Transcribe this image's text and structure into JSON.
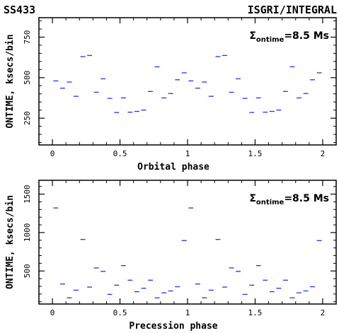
{
  "header": {
    "left": "SS433",
    "right": "ISGRI/INTEGRAL"
  },
  "chart_data": [
    {
      "type": "scatter",
      "annotation": {
        "symbol": "Σ",
        "subscript": "ontime",
        "value": "=8.5 Ms"
      },
      "xlabel": "Orbital phase",
      "ylabel": "ONTIME, ksecs/bin",
      "xlim": [
        -0.1,
        2.1
      ],
      "ylim": [
        85,
        870
      ],
      "xticks": [
        "0",
        "0.5",
        "1",
        "1.5",
        "2"
      ],
      "xtick_values": [
        0,
        0.5,
        1,
        1.5,
        2
      ],
      "yticks": [
        "250",
        "500",
        "750"
      ],
      "ytick_values": [
        250,
        500,
        750
      ],
      "marker_color": "#2233ee",
      "points": [
        {
          "x": 0.025,
          "y": 480
        },
        {
          "x": 0.075,
          "y": 435
        },
        {
          "x": 0.125,
          "y": 473
        },
        {
          "x": 0.175,
          "y": 385
        },
        {
          "x": 0.225,
          "y": 630
        },
        {
          "x": 0.275,
          "y": 637
        },
        {
          "x": 0.325,
          "y": 410
        },
        {
          "x": 0.375,
          "y": 493
        },
        {
          "x": 0.425,
          "y": 372
        },
        {
          "x": 0.475,
          "y": 285
        },
        {
          "x": 0.525,
          "y": 375
        },
        {
          "x": 0.575,
          "y": 287
        },
        {
          "x": 0.625,
          "y": 292
        },
        {
          "x": 0.675,
          "y": 300
        },
        {
          "x": 0.725,
          "y": 415
        },
        {
          "x": 0.775,
          "y": 567
        },
        {
          "x": 0.825,
          "y": 375
        },
        {
          "x": 0.875,
          "y": 402
        },
        {
          "x": 0.925,
          "y": 487
        },
        {
          "x": 0.975,
          "y": 530
        },
        {
          "x": 1.025,
          "y": 480
        },
        {
          "x": 1.075,
          "y": 435
        },
        {
          "x": 1.125,
          "y": 473
        },
        {
          "x": 1.175,
          "y": 385
        },
        {
          "x": 1.225,
          "y": 630
        },
        {
          "x": 1.275,
          "y": 637
        },
        {
          "x": 1.325,
          "y": 410
        },
        {
          "x": 1.375,
          "y": 493
        },
        {
          "x": 1.425,
          "y": 372
        },
        {
          "x": 1.475,
          "y": 285
        },
        {
          "x": 1.525,
          "y": 375
        },
        {
          "x": 1.575,
          "y": 287
        },
        {
          "x": 1.625,
          "y": 292
        },
        {
          "x": 1.675,
          "y": 300
        },
        {
          "x": 1.725,
          "y": 415
        },
        {
          "x": 1.775,
          "y": 567
        },
        {
          "x": 1.825,
          "y": 375
        },
        {
          "x": 1.875,
          "y": 402
        },
        {
          "x": 1.925,
          "y": 487
        },
        {
          "x": 1.975,
          "y": 530
        }
      ]
    },
    {
      "type": "scatter",
      "annotation": {
        "symbol": "Σ",
        "subscript": "ontime",
        "value": "=8.5 Ms"
      },
      "xlabel": "Precession phase",
      "ylabel": "ONTIME, ksecs/bin",
      "xlim": [
        -0.1,
        2.1
      ],
      "ylim": [
        70,
        1680
      ],
      "xticks": [
        "0",
        "0.5",
        "1",
        "1.5",
        "2"
      ],
      "xtick_values": [
        0,
        0.5,
        1,
        1.5,
        2
      ],
      "yticks": [
        "500",
        "1000",
        "1500"
      ],
      "ytick_values": [
        500,
        1000,
        1500
      ],
      "marker_color": "#2233ee",
      "points": [
        {
          "x": 0.025,
          "y": 1320
        },
        {
          "x": 0.075,
          "y": 330
        },
        {
          "x": 0.125,
          "y": 150
        },
        {
          "x": 0.175,
          "y": 250
        },
        {
          "x": 0.225,
          "y": 910
        },
        {
          "x": 0.275,
          "y": 290
        },
        {
          "x": 0.325,
          "y": 540
        },
        {
          "x": 0.375,
          "y": 495
        },
        {
          "x": 0.425,
          "y": 195
        },
        {
          "x": 0.475,
          "y": 315
        },
        {
          "x": 0.525,
          "y": 570
        },
        {
          "x": 0.575,
          "y": 380
        },
        {
          "x": 0.625,
          "y": 230
        },
        {
          "x": 0.675,
          "y": 275
        },
        {
          "x": 0.725,
          "y": 380
        },
        {
          "x": 0.775,
          "y": 150
        },
        {
          "x": 0.825,
          "y": 215
        },
        {
          "x": 0.875,
          "y": 240
        },
        {
          "x": 0.925,
          "y": 295
        },
        {
          "x": 0.975,
          "y": 895
        },
        {
          "x": 1.025,
          "y": 1320
        },
        {
          "x": 1.075,
          "y": 330
        },
        {
          "x": 1.125,
          "y": 150
        },
        {
          "x": 1.175,
          "y": 250
        },
        {
          "x": 1.225,
          "y": 910
        },
        {
          "x": 1.275,
          "y": 290
        },
        {
          "x": 1.325,
          "y": 540
        },
        {
          "x": 1.375,
          "y": 495
        },
        {
          "x": 1.425,
          "y": 195
        },
        {
          "x": 1.475,
          "y": 315
        },
        {
          "x": 1.525,
          "y": 570
        },
        {
          "x": 1.575,
          "y": 380
        },
        {
          "x": 1.625,
          "y": 230
        },
        {
          "x": 1.675,
          "y": 275
        },
        {
          "x": 1.725,
          "y": 380
        },
        {
          "x": 1.775,
          "y": 150
        },
        {
          "x": 1.825,
          "y": 215
        },
        {
          "x": 1.875,
          "y": 240
        },
        {
          "x": 1.925,
          "y": 295
        },
        {
          "x": 1.975,
          "y": 895
        }
      ]
    }
  ]
}
